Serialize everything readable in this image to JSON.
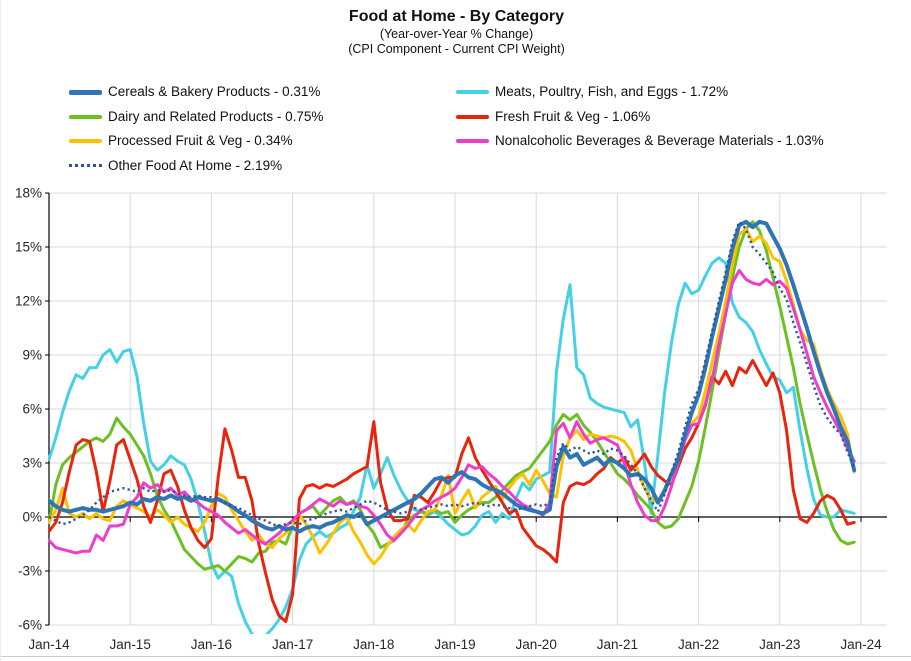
{
  "header": {
    "title": "Food at Home - By Category",
    "subtitle1": "(Year-over-Year % Change)",
    "subtitle2": "(CPI Component - Current CPI Weight)"
  },
  "colors": {
    "grid": "#d9d9d9",
    "axis": "#000000",
    "tick_text": "#262626",
    "divider": "#cccccc",
    "background": "#ffffff"
  },
  "chart_data": {
    "type": "line",
    "title": "Food at Home - By Category",
    "subtitles": [
      "(Year-over-Year % Change)",
      "(CPI Component - Current CPI Weight)"
    ],
    "x_unit": "month",
    "x_start": "Jan-14",
    "x_end": "Dec-23",
    "x_tick_labels": [
      "Jan-14",
      "Jan-15",
      "Jan-16",
      "Jan-17",
      "Jan-18",
      "Jan-19",
      "Jan-20",
      "Jan-21",
      "Jan-22",
      "Jan-23",
      "Jan-24"
    ],
    "ylim": [
      -6,
      18
    ],
    "y_tick_step": 3,
    "y_tick_labels": [
      "18%",
      "15%",
      "12%",
      "9%",
      "6%",
      "3%",
      "0%",
      "-3%",
      "-6%"
    ],
    "grid": true,
    "legend": {
      "position": "top-left",
      "columns": [
        [
          0,
          2,
          4,
          6
        ],
        [
          1,
          3,
          5
        ]
      ]
    },
    "draw_order": [
      1,
      2,
      4,
      3,
      5,
      0,
      6
    ],
    "series": [
      {
        "name": "Cereals & Bakery Products",
        "legend_label": "Cereals & Bakery Products - 0.31%",
        "weight_label": "0.31%",
        "color": "#2e75b6",
        "style": "solid",
        "width": 4,
        "values": [
          0.9,
          0.6,
          0.4,
          0.3,
          0.4,
          0.5,
          0.4,
          0.4,
          0.3,
          0.4,
          0.5,
          0.6,
          0.8,
          0.7,
          1.0,
          0.9,
          1.1,
          1.0,
          1.2,
          1.0,
          1.1,
          0.9,
          1.1,
          1.0,
          0.9,
          1.0,
          0.8,
          0.6,
          0.3,
          0.1,
          -0.2,
          -0.4,
          -0.6,
          -0.7,
          -0.5,
          -0.7,
          -0.6,
          -0.8,
          -0.6,
          -0.5,
          -0.6,
          -0.4,
          -0.3,
          -0.1,
          0.1,
          0.0,
          0.2,
          -0.4,
          -0.2,
          0.0,
          0.2,
          0.4,
          0.6,
          0.8,
          1.0,
          1.3,
          1.7,
          2.1,
          2.2,
          1.9,
          2.3,
          2.5,
          2.2,
          2.1,
          1.8,
          1.6,
          1.5,
          1.3,
          1.0,
          0.7,
          0.5,
          0.4,
          0.3,
          0.2,
          0.4,
          2.8,
          3.9,
          3.3,
          3.5,
          2.9,
          3.1,
          3.3,
          2.9,
          3.2,
          3.0,
          2.7,
          2.3,
          2.4,
          2.1,
          1.6,
          0.8,
          1.5,
          2.4,
          3.2,
          4.6,
          5.8,
          6.8,
          8.3,
          10.0,
          11.6,
          13.2,
          14.9,
          16.2,
          16.4,
          16.1,
          16.4,
          16.3,
          15.6,
          14.9,
          14.0,
          12.9,
          11.7,
          10.5,
          9.2,
          8.0,
          6.9,
          6.0,
          5.0,
          4.2,
          2.6
        ]
      },
      {
        "name": "Meats, Poultry, Fish, and Eggs",
        "legend_label": "Meats, Poultry, Fish, and Eggs - 1.72%",
        "weight_label": "1.72%",
        "color": "#45d1e5",
        "style": "solid",
        "width": 3,
        "values": [
          3.2,
          4.4,
          5.8,
          7.0,
          7.9,
          7.7,
          8.3,
          8.3,
          9.0,
          9.3,
          8.6,
          9.2,
          9.3,
          7.8,
          5.2,
          3.1,
          2.6,
          2.9,
          3.4,
          3.1,
          2.9,
          2.1,
          0.8,
          -0.8,
          -2.6,
          -3.4,
          -3.0,
          -3.3,
          -4.8,
          -5.8,
          -6.5,
          -6.8,
          -6.6,
          -6.2,
          -5.7,
          -5.0,
          -4.0,
          -2.4,
          -1.5,
          -1.1,
          -0.8,
          -1.1,
          -0.9,
          -0.6,
          -0.4,
          0.3,
          1.1,
          2.9,
          1.6,
          2.4,
          3.3,
          2.3,
          1.5,
          0.9,
          0.4,
          0.3,
          0.1,
          0.3,
          0.0,
          -0.4,
          -0.7,
          -1.0,
          -0.9,
          -0.5,
          0.1,
          0.3,
          -0.3,
          0.2,
          -0.1,
          1.0,
          1.9,
          1.5,
          2.1,
          2.3,
          2.5,
          8.1,
          11.0,
          12.9,
          8.3,
          7.9,
          6.6,
          6.3,
          6.1,
          6.0,
          5.9,
          5.8,
          5.0,
          5.4,
          3.0,
          0.2,
          3.5,
          7.0,
          9.7,
          11.8,
          13.0,
          12.4,
          12.6,
          13.4,
          14.1,
          14.4,
          14.1,
          11.9,
          11.1,
          10.8,
          10.3,
          9.3,
          8.5,
          7.8,
          7.6,
          6.9,
          7.2,
          4.8,
          2.7,
          1.0,
          0.1,
          0.0,
          0.0,
          0.4,
          0.3,
          0.2
        ]
      },
      {
        "name": "Dairy and Related Products",
        "legend_label": "Dairy and Related Products - 0.75%",
        "weight_label": "0.75%",
        "color": "#6cc024",
        "style": "solid",
        "width": 3,
        "values": [
          -0.3,
          1.8,
          2.9,
          3.3,
          3.6,
          3.9,
          4.2,
          4.4,
          4.2,
          4.6,
          5.5,
          5.0,
          4.6,
          4.0,
          3.4,
          2.4,
          1.2,
          0.4,
          -0.2,
          -1.0,
          -1.8,
          -2.2,
          -2.6,
          -2.9,
          -2.8,
          -2.7,
          -3.0,
          -2.6,
          -2.2,
          -2.3,
          -2.5,
          -2.0,
          -1.9,
          -1.4,
          -1.3,
          -1.5,
          -0.5,
          0.2,
          0.4,
          0.6,
          0.1,
          0.5,
          0.9,
          1.1,
          0.7,
          0.9,
          0.4,
          -0.4,
          -0.9,
          -1.7,
          -1.5,
          -1.3,
          -0.9,
          -0.2,
          0.1,
          0.3,
          0.2,
          0.4,
          0.2,
          0.3,
          -0.3,
          0.1,
          0.4,
          0.6,
          0.8,
          0.8,
          1.1,
          1.5,
          1.9,
          2.3,
          2.5,
          2.7,
          3.2,
          3.7,
          4.2,
          5.1,
          5.7,
          5.4,
          5.7,
          5.1,
          4.7,
          4.2,
          3.6,
          3.0,
          2.4,
          2.1,
          1.7,
          1.2,
          0.8,
          0.4,
          -0.3,
          -0.6,
          -0.5,
          -0.1,
          0.8,
          1.7,
          3.1,
          5.0,
          7.0,
          9.2,
          11.3,
          13.3,
          15.0,
          16.0,
          16.4,
          15.9,
          14.8,
          13.3,
          11.7,
          10.0,
          8.3,
          6.3,
          4.6,
          3.0,
          1.5,
          0.3,
          -0.7,
          -1.3,
          -1.5,
          -1.4
        ]
      },
      {
        "name": "Fresh Fruit & Veg",
        "legend_label": "Fresh Fruit & Veg - 1.06%",
        "weight_label": "1.06%",
        "color": "#e8250c",
        "style": "solid",
        "width": 3,
        "values": [
          -0.8,
          -0.3,
          0.8,
          2.5,
          4.0,
          4.3,
          4.2,
          2.5,
          0.3,
          2.0,
          4.0,
          4.3,
          3.2,
          2.1,
          0.6,
          -0.3,
          0.9,
          2.4,
          2.6,
          1.7,
          0.4,
          -0.6,
          -1.3,
          -1.7,
          -1.2,
          2.2,
          4.9,
          3.7,
          2.2,
          2.2,
          0.9,
          -1.5,
          -3.1,
          -4.6,
          -5.5,
          -5.8,
          -4.3,
          1.0,
          1.7,
          1.8,
          1.6,
          1.8,
          1.7,
          1.9,
          2.1,
          2.4,
          2.6,
          2.8,
          5.3,
          1.9,
          0.4,
          -0.2,
          -0.2,
          -0.1,
          1.2,
          1.1,
          0.8,
          1.4,
          2.1,
          2.2,
          2.2,
          3.5,
          4.4,
          3.3,
          2.6,
          2.0,
          1.4,
          0.8,
          0.2,
          0.4,
          -0.6,
          -1.1,
          -1.6,
          -1.8,
          -2.1,
          -2.5,
          0.8,
          1.7,
          1.9,
          1.8,
          2.0,
          2.4,
          2.7,
          3.3,
          3.0,
          3.3,
          2.6,
          3.0,
          3.5,
          2.8,
          2.3,
          2.0,
          1.8,
          2.8,
          3.8,
          4.4,
          5.2,
          6.2,
          7.8,
          7.4,
          8.1,
          7.3,
          8.3,
          8.0,
          8.7,
          8.0,
          7.3,
          8.0,
          6.9,
          4.8,
          1.5,
          -0.1,
          -0.3,
          0.2,
          0.9,
          1.2,
          1.0,
          0.4,
          -0.4,
          -0.3
        ]
      },
      {
        "name": "Processed Fruit & Veg",
        "legend_label": "Processed Fruit & Veg - 0.34%",
        "weight_label": "0.34%",
        "color": "#ffc000",
        "style": "solid",
        "width": 3,
        "values": [
          -0.3,
          0.4,
          1.6,
          0.2,
          0.0,
          0.2,
          -0.1,
          0.2,
          -0.1,
          -0.2,
          0.6,
          0.9,
          0.7,
          0.5,
          0.3,
          0.0,
          0.4,
          0.1,
          -0.3,
          0.0,
          -0.4,
          -0.6,
          -0.8,
          -0.3,
          0.6,
          1.3,
          1.1,
          0.4,
          -0.2,
          -0.8,
          -1.3,
          -1.0,
          -1.5,
          -1.7,
          -1.2,
          -0.9,
          -0.5,
          0.1,
          -0.4,
          -1.1,
          -2.0,
          -1.5,
          -0.9,
          -0.3,
          0.0,
          -0.8,
          -1.4,
          -2.1,
          -2.6,
          -2.2,
          -1.6,
          -1.1,
          -0.7,
          -0.4,
          -0.8,
          -0.2,
          0.3,
          0.4,
          1.2,
          2.3,
          0.2,
          0.9,
          1.5,
          0.5,
          1.1,
          1.4,
          1.7,
          1.0,
          1.6,
          2.1,
          2.4,
          1.8,
          2.6,
          2.0,
          1.3,
          1.1,
          3.4,
          4.4,
          4.8,
          4.3,
          4.6,
          4.5,
          4.4,
          4.5,
          4.4,
          4.2,
          3.7,
          2.6,
          1.6,
          1.0,
          0.8,
          1.4,
          2.3,
          3.4,
          4.4,
          5.2,
          5.6,
          7.0,
          8.6,
          10.2,
          12.0,
          14.0,
          15.7,
          16.0,
          15.3,
          15.6,
          15.2,
          14.4,
          14.2,
          13.1,
          11.8,
          10.4,
          9.8,
          9.6,
          8.2,
          7.1,
          6.3,
          5.6,
          4.6,
          2.5
        ]
      },
      {
        "name": "Nonalcoholic Beverages & Beverage Materials",
        "legend_label": "Nonalcoholic Beverages & Beverage Materials - 1.03%",
        "weight_label": "1.03%",
        "color": "#ee3dcb",
        "style": "solid",
        "width": 3,
        "values": [
          -1.3,
          -1.7,
          -1.8,
          -1.9,
          -2.0,
          -1.9,
          -1.9,
          -1.0,
          -1.3,
          -0.5,
          -0.5,
          -0.4,
          0.7,
          1.1,
          1.9,
          1.6,
          1.8,
          1.4,
          1.6,
          1.2,
          1.4,
          1.0,
          0.8,
          0.5,
          0.3,
          0.1,
          -0.3,
          -0.6,
          -0.9,
          -0.7,
          -1.0,
          -1.3,
          -1.5,
          -1.2,
          -0.9,
          -0.5,
          -0.2,
          0.2,
          0.4,
          0.7,
          1.0,
          0.8,
          0.6,
          0.9,
          0.7,
          0.8,
          0.6,
          0.5,
          0.1,
          -0.4,
          -1.0,
          -1.3,
          -0.9,
          -0.5,
          0.0,
          0.4,
          0.6,
          0.9,
          1.1,
          1.3,
          1.6,
          2.2,
          2.9,
          2.7,
          2.8,
          2.4,
          2.1,
          1.7,
          1.4,
          1.0,
          0.7,
          0.5,
          0.3,
          0.1,
          0.8,
          4.8,
          5.2,
          4.4,
          5.3,
          4.6,
          4.1,
          4.3,
          4.4,
          4.2,
          4.0,
          3.0,
          1.8,
          0.8,
          0.1,
          -0.2,
          -0.2,
          0.6,
          1.7,
          3.0,
          4.3,
          5.1,
          5.2,
          6.3,
          7.6,
          9.6,
          11.3,
          13.0,
          13.7,
          13.2,
          13.0,
          12.9,
          13.2,
          12.9,
          13.1,
          12.7,
          11.6,
          10.4,
          9.1,
          7.8,
          6.9,
          6.1,
          5.4,
          4.7,
          3.8,
          3.1
        ]
      },
      {
        "name": "Other Food At Home",
        "legend_label": "Other Food At Home - 2.19%",
        "weight_label": "2.19%",
        "color": "#2e5597",
        "style": "dotted",
        "width": 2.4,
        "values": [
          0.0,
          -0.2,
          -0.4,
          -0.3,
          -0.1,
          0.1,
          0.4,
          0.8,
          1.1,
          1.4,
          1.5,
          1.6,
          1.5,
          1.4,
          1.6,
          1.4,
          1.5,
          1.4,
          1.5,
          1.3,
          1.2,
          1.1,
          1.2,
          1.1,
          1.1,
          1.0,
          0.8,
          0.6,
          0.5,
          0.3,
          0.1,
          -0.1,
          -0.2,
          -0.4,
          -0.5,
          -0.4,
          -0.3,
          -0.4,
          -0.2,
          -0.1,
          0.0,
          0.2,
          0.3,
          0.4,
          0.3,
          0.5,
          0.7,
          0.9,
          0.8,
          0.6,
          0.4,
          0.3,
          0.2,
          0.3,
          0.5,
          0.4,
          0.5,
          0.6,
          0.7,
          0.6,
          0.7,
          0.6,
          0.7,
          0.8,
          0.7,
          0.6,
          0.7,
          0.6,
          0.5,
          0.4,
          0.5,
          0.6,
          0.7,
          0.6,
          0.8,
          3.3,
          4.1,
          3.7,
          3.9,
          3.7,
          3.5,
          3.7,
          3.5,
          3.8,
          3.7,
          3.4,
          2.9,
          2.4,
          1.6,
          0.9,
          0.3,
          1.3,
          2.5,
          3.6,
          5.0,
          6.3,
          7.1,
          8.7,
          10.3,
          12.0,
          13.6,
          15.3,
          16.4,
          16.0,
          15.0,
          14.6,
          14.1,
          13.6,
          12.7,
          12.1,
          10.8,
          9.7,
          8.5,
          7.3,
          6.2,
          5.5,
          5.0,
          4.6,
          3.6,
          2.7
        ]
      }
    ]
  }
}
